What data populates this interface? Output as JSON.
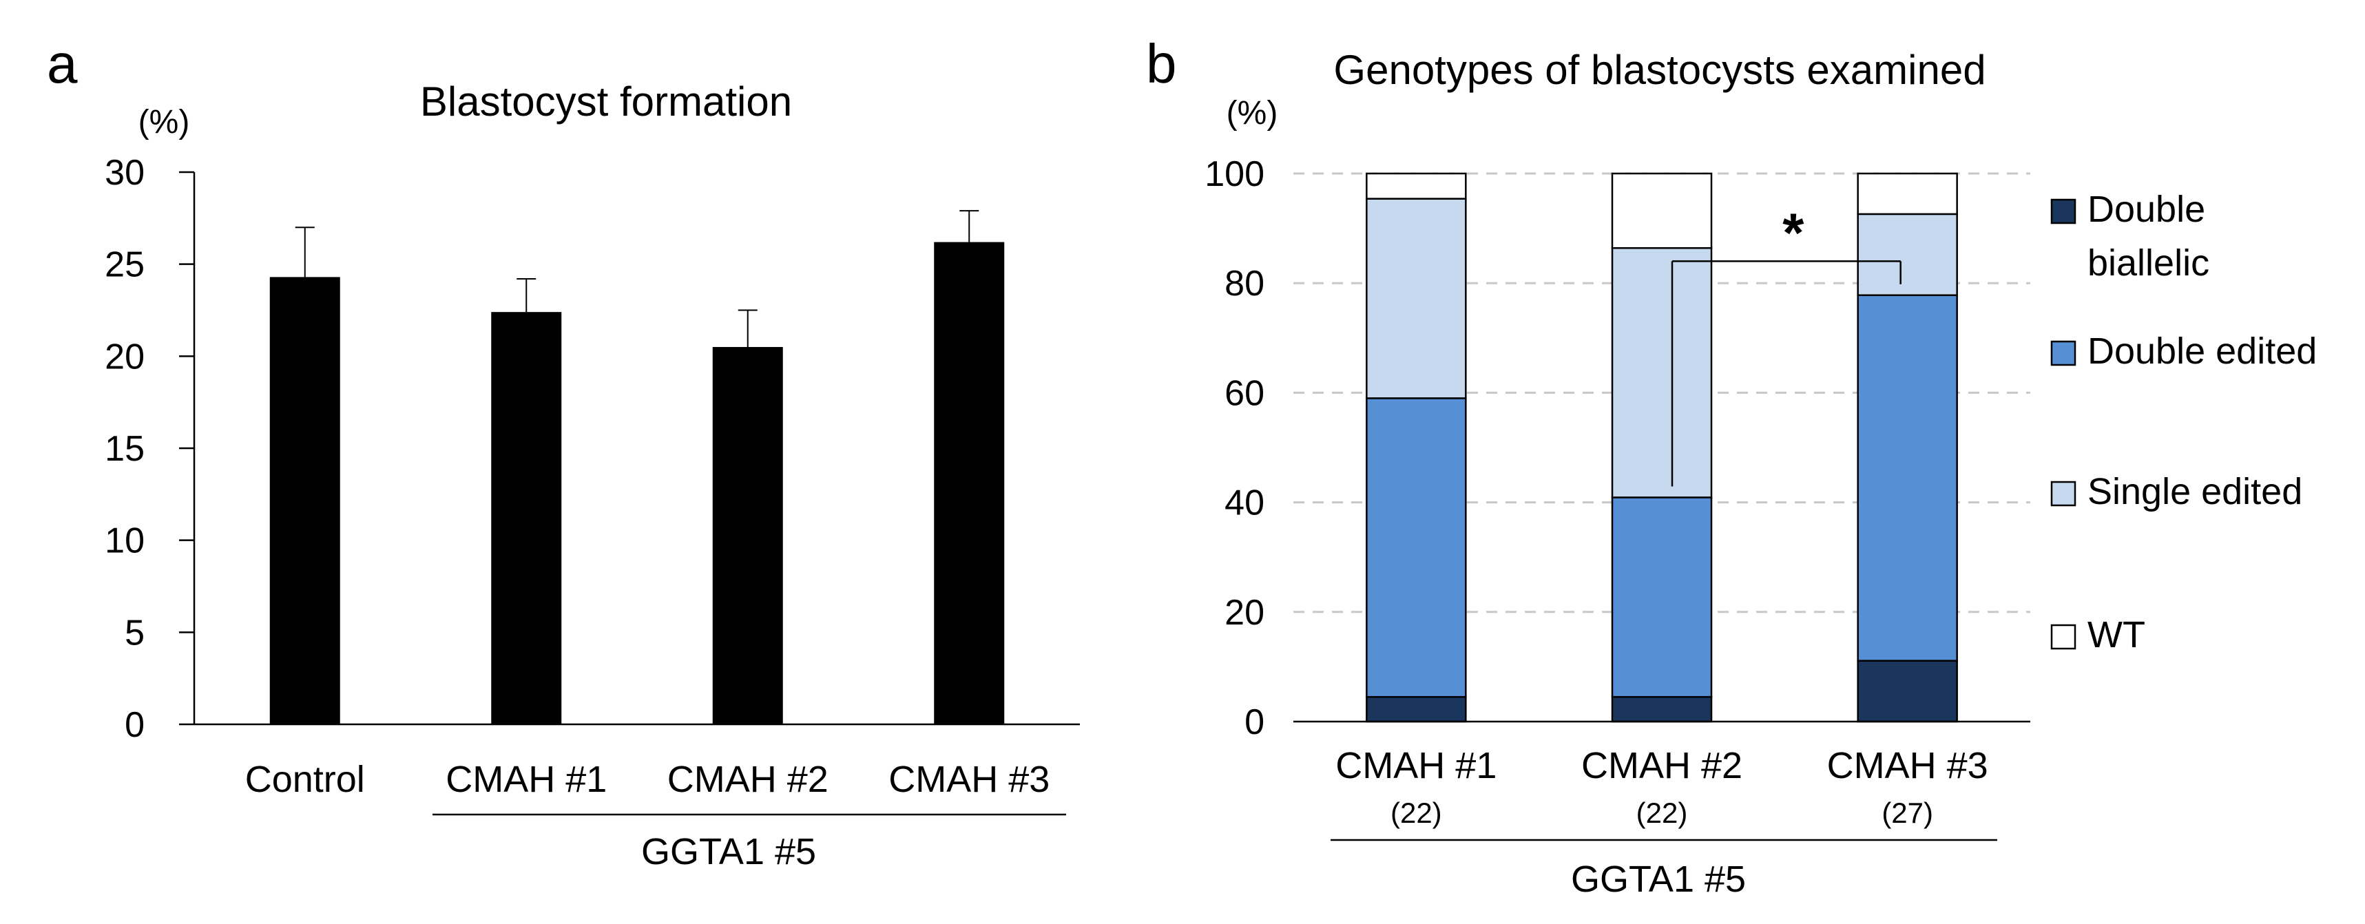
{
  "chart_data": [
    {
      "panel": "a",
      "type": "bar",
      "title": "Blastocyst formation",
      "ylabel": "(%)",
      "ylim": [
        0,
        30
      ],
      "yticks": [
        0,
        5,
        10,
        15,
        20,
        25,
        30
      ],
      "categories": [
        "Control",
        "CMAH #1",
        "CMAH #2",
        "CMAH #3"
      ],
      "values": [
        24.3,
        22.4,
        20.5,
        26.2
      ],
      "errors": [
        2.7,
        1.8,
        2.0,
        1.7
      ],
      "bar_color": "#000000",
      "group_label": "GGTA1 #5",
      "group_members": [
        "CMAH #1",
        "CMAH #2",
        "CMAH #3"
      ]
    },
    {
      "panel": "b",
      "type": "bar",
      "stacked": true,
      "title": "Genotypes of blastocysts examined",
      "ylabel": "(%)",
      "ylim": [
        0,
        100
      ],
      "yticks": [
        0,
        20,
        40,
        60,
        80,
        100
      ],
      "grid": true,
      "categories": [
        "CMAH #1",
        "CMAH #2",
        "CMAH #3"
      ],
      "sample_sizes": [
        "(22)",
        "(22)",
        "(27)"
      ],
      "group_label": "GGTA1 #5",
      "series": [
        {
          "name": "Double biallelic",
          "name_lines": [
            "Double",
            "biallelic"
          ],
          "color": "#1b365d",
          "values": [
            4.5,
            4.5,
            11.1
          ]
        },
        {
          "name": "Double edited",
          "name_lines": [
            "Double edited"
          ],
          "color": "#578fd4",
          "values": [
            54.5,
            36.4,
            66.7
          ]
        },
        {
          "name": "Single edited",
          "name_lines": [
            "Single edited"
          ],
          "color": "#c7d9ef",
          "values": [
            36.4,
            45.5,
            14.8
          ]
        },
        {
          "name": "WT",
          "name_lines": [
            "WT"
          ],
          "color": "#ffffff",
          "values": [
            4.6,
            13.6,
            7.4
          ]
        }
      ],
      "significance": {
        "label": "*",
        "between": [
          "CMAH #2",
          "CMAH #3"
        ],
        "series": "Double edited"
      }
    }
  ]
}
